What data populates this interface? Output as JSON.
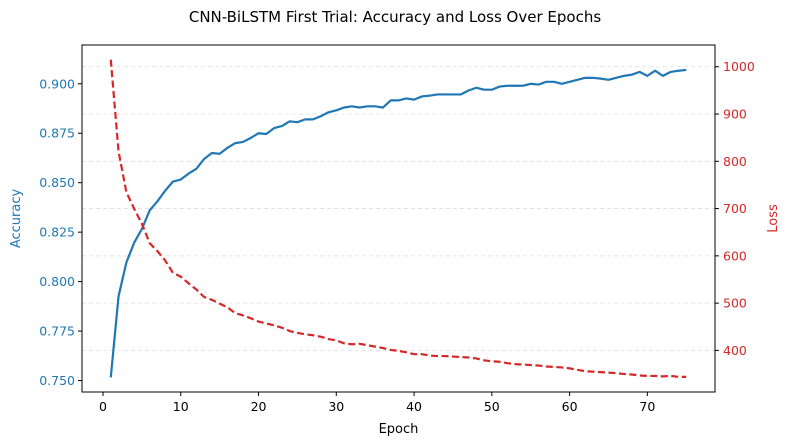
{
  "chart_data": {
    "type": "line",
    "title": "CNN-BiLSTM First Trial: Accuracy and Loss Over Epochs",
    "xlabel": "Epoch",
    "ylabel_left": "Accuracy",
    "ylabel_right": "Loss",
    "xlim": [
      -2.7,
      78.7
    ],
    "ylim_left": [
      0.7442,
      0.9196
    ],
    "ylim_right": [
      312,
      1046
    ],
    "x_ticks": [
      0,
      10,
      20,
      30,
      40,
      50,
      60,
      70
    ],
    "y_left_ticks": [
      0.75,
      0.775,
      0.8,
      0.825,
      0.85,
      0.875,
      0.9
    ],
    "y_right_ticks": [
      400,
      500,
      600,
      700,
      800,
      900,
      1000
    ],
    "grid": "horizontal dashed (loss axis)",
    "colors": {
      "accuracy": "#1f77b4",
      "loss": "#d62728",
      "grid": "#dddddd"
    },
    "x": [
      1,
      2,
      3,
      4,
      5,
      6,
      7,
      8,
      9,
      10,
      11,
      12,
      13,
      14,
      15,
      16,
      17,
      18,
      19,
      20,
      21,
      22,
      23,
      24,
      25,
      26,
      27,
      28,
      29,
      30,
      31,
      32,
      33,
      34,
      35,
      36,
      37,
      38,
      39,
      40,
      41,
      42,
      43,
      44,
      45,
      46,
      47,
      48,
      49,
      50,
      51,
      52,
      53,
      54,
      55,
      56,
      57,
      58,
      59,
      60,
      61,
      62,
      63,
      64,
      65,
      66,
      67,
      68,
      69,
      70,
      71,
      72,
      73,
      74,
      75
    ],
    "series": [
      {
        "name": "Accuracy",
        "axis": "left",
        "style": "solid",
        "values": [
          0.7516,
          0.7926,
          0.8096,
          0.8196,
          0.8266,
          0.836,
          0.8406,
          0.846,
          0.8506,
          0.8516,
          0.8546,
          0.857,
          0.862,
          0.865,
          0.8646,
          0.8676,
          0.87,
          0.8706,
          0.8726,
          0.875,
          0.8746,
          0.8776,
          0.8786,
          0.881,
          0.8806,
          0.882,
          0.882,
          0.8836,
          0.8856,
          0.8866,
          0.888,
          0.8886,
          0.888,
          0.8886,
          0.8886,
          0.888,
          0.8916,
          0.8916,
          0.8926,
          0.892,
          0.8936,
          0.894,
          0.8946,
          0.8946,
          0.8946,
          0.8946,
          0.8966,
          0.898,
          0.897,
          0.897,
          0.8986,
          0.899,
          0.899,
          0.899,
          0.9,
          0.8996,
          0.901,
          0.901,
          0.9,
          0.901,
          0.902,
          0.903,
          0.903,
          0.9026,
          0.902,
          0.903,
          0.904,
          0.9046,
          0.906,
          0.904,
          0.9066,
          0.904,
          0.906,
          0.9066,
          0.907
        ]
      },
      {
        "name": "Loss",
        "axis": "right",
        "style": "dashed",
        "values": [
          1015,
          821,
          735,
          700,
          668,
          627,
          610,
          590,
          564,
          556,
          542,
          529,
          513,
          507,
          499,
          491,
          479,
          474,
          468,
          461,
          457,
          453,
          448,
          441,
          437,
          434,
          432,
          429,
          424,
          421,
          415,
          413,
          414,
          411,
          408,
          405,
          401,
          399,
          396,
          392,
          392,
          389,
          388,
          388,
          387,
          386,
          385,
          383,
          379,
          377,
          376,
          373,
          371,
          370,
          369,
          368,
          366,
          365,
          364,
          362,
          359,
          356,
          355,
          354,
          353,
          352,
          350,
          349,
          347,
          346,
          346,
          345,
          346,
          344,
          344
        ]
      }
    ]
  }
}
